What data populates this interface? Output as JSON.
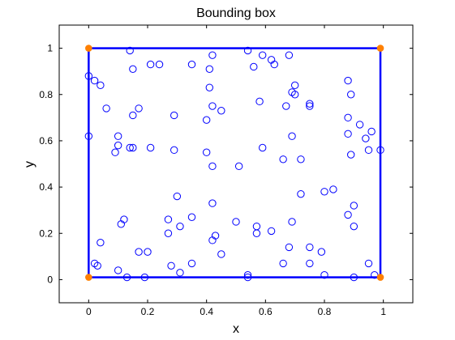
{
  "chart_data": {
    "type": "scatter",
    "title": "Bounding box",
    "xlabel": "x",
    "ylabel": "y",
    "xlim": [
      -0.1,
      1.1
    ],
    "ylim": [
      -0.1,
      1.1
    ],
    "xticks": [
      0,
      0.2,
      0.4,
      0.6,
      0.8,
      1
    ],
    "yticks": [
      0,
      0.2,
      0.4,
      0.6,
      0.8,
      1
    ],
    "xtick_labels": [
      "0",
      "0.2",
      "0.4",
      "0.6",
      "0.8",
      "1"
    ],
    "ytick_labels": [
      "0",
      "0.2",
      "0.4",
      "0.6",
      "0.8",
      "1"
    ],
    "grid": false,
    "colors": {
      "points": "#0000ff",
      "box": "#0000ff",
      "corners": "#ff8000",
      "axes": "#000000"
    },
    "bounding_box": {
      "x_min": 0.0,
      "x_max": 0.99,
      "y_min": 0.01,
      "y_max": 1.0
    },
    "corners": [
      {
        "x": 0.0,
        "y": 1.0
      },
      {
        "x": 0.99,
        "y": 1.0
      },
      {
        "x": 0.0,
        "y": 0.01
      },
      {
        "x": 0.99,
        "y": 0.01
      }
    ],
    "series": [
      {
        "marker": "circle-open",
        "points": [
          [
            0.0,
            0.88
          ],
          [
            0.02,
            0.86
          ],
          [
            0.04,
            0.84
          ],
          [
            0.0,
            0.62
          ],
          [
            0.06,
            0.74
          ],
          [
            0.14,
            0.99
          ],
          [
            0.15,
            0.91
          ],
          [
            0.21,
            0.93
          ],
          [
            0.24,
            0.93
          ],
          [
            0.35,
            0.93
          ],
          [
            0.41,
            0.91
          ],
          [
            0.42,
            0.97
          ],
          [
            0.41,
            0.83
          ],
          [
            0.42,
            0.75
          ],
          [
            0.45,
            0.73
          ],
          [
            0.4,
            0.69
          ],
          [
            0.17,
            0.74
          ],
          [
            0.15,
            0.71
          ],
          [
            0.29,
            0.71
          ],
          [
            0.1,
            0.62
          ],
          [
            0.1,
            0.58
          ],
          [
            0.09,
            0.55
          ],
          [
            0.14,
            0.57
          ],
          [
            0.15,
            0.57
          ],
          [
            0.21,
            0.57
          ],
          [
            0.29,
            0.56
          ],
          [
            0.4,
            0.55
          ],
          [
            0.42,
            0.49
          ],
          [
            0.54,
            0.99
          ],
          [
            0.56,
            0.92
          ],
          [
            0.59,
            0.97
          ],
          [
            0.62,
            0.95
          ],
          [
            0.63,
            0.93
          ],
          [
            0.68,
            0.97
          ],
          [
            0.69,
            0.81
          ],
          [
            0.7,
            0.8
          ],
          [
            0.7,
            0.84
          ],
          [
            0.67,
            0.75
          ],
          [
            0.75,
            0.75
          ],
          [
            0.75,
            0.76
          ],
          [
            0.58,
            0.77
          ],
          [
            0.59,
            0.57
          ],
          [
            0.69,
            0.62
          ],
          [
            0.66,
            0.52
          ],
          [
            0.72,
            0.52
          ],
          [
            0.51,
            0.49
          ],
          [
            0.88,
            0.86
          ],
          [
            0.89,
            0.8
          ],
          [
            0.92,
            0.67
          ],
          [
            0.88,
            0.7
          ],
          [
            0.88,
            0.63
          ],
          [
            0.94,
            0.61
          ],
          [
            0.96,
            0.64
          ],
          [
            0.95,
            0.56
          ],
          [
            0.99,
            0.56
          ],
          [
            0.89,
            0.54
          ],
          [
            0.3,
            0.36
          ],
          [
            0.42,
            0.33
          ],
          [
            0.27,
            0.26
          ],
          [
            0.35,
            0.27
          ],
          [
            0.27,
            0.2
          ],
          [
            0.31,
            0.23
          ],
          [
            0.43,
            0.19
          ],
          [
            0.42,
            0.17
          ],
          [
            0.12,
            0.26
          ],
          [
            0.11,
            0.24
          ],
          [
            0.04,
            0.16
          ],
          [
            0.17,
            0.12
          ],
          [
            0.2,
            0.12
          ],
          [
            0.45,
            0.11
          ],
          [
            0.02,
            0.07
          ],
          [
            0.03,
            0.06
          ],
          [
            0.1,
            0.04
          ],
          [
            0.13,
            0.01
          ],
          [
            0.19,
            0.01
          ],
          [
            0.28,
            0.06
          ],
          [
            0.31,
            0.03
          ],
          [
            0.35,
            0.07
          ],
          [
            0.5,
            0.25
          ],
          [
            0.57,
            0.23
          ],
          [
            0.57,
            0.2
          ],
          [
            0.62,
            0.21
          ],
          [
            0.54,
            0.02
          ],
          [
            0.54,
            0.01
          ],
          [
            0.72,
            0.37
          ],
          [
            0.69,
            0.25
          ],
          [
            0.68,
            0.14
          ],
          [
            0.66,
            0.07
          ],
          [
            0.75,
            0.14
          ],
          [
            0.75,
            0.07
          ],
          [
            0.79,
            0.12
          ],
          [
            0.8,
            0.38
          ],
          [
            0.83,
            0.39
          ],
          [
            0.88,
            0.28
          ],
          [
            0.9,
            0.32
          ],
          [
            0.9,
            0.23
          ],
          [
            0.8,
            0.02
          ],
          [
            0.9,
            0.01
          ],
          [
            0.95,
            0.07
          ],
          [
            0.97,
            0.02
          ]
        ]
      }
    ]
  }
}
